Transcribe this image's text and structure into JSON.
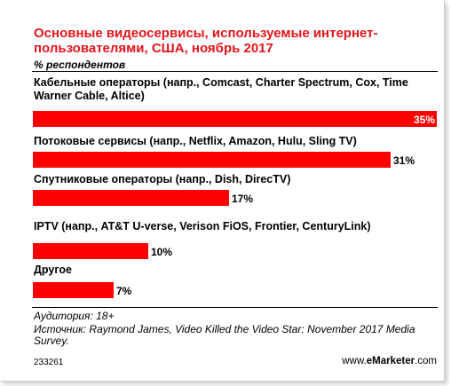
{
  "header": {
    "title": "Основные видеосервисы, используемые интернет-пользователями, США, ноябрь 2017",
    "subtitle": "% респондентов"
  },
  "chart_data": {
    "type": "bar",
    "orientation": "horizontal",
    "categories": [
      "Кабельные операторы (напр., Comcast, Charter Spectrum, Cox, Time Warner Cable, Altice)",
      "Потоковые сервисы (напр., Netflix, Amazon, Hulu, Sling TV)",
      "Спутниковые операторы (напр., Dish, DirecTV)",
      "IPTV (напр., AT&T U-verse, Verison FiOS, Frontier, CenturyLink)",
      "Другое"
    ],
    "values": [
      35,
      31,
      17,
      10,
      7
    ],
    "value_labels": [
      "35%",
      "31%",
      "17%",
      "10%",
      "7%"
    ],
    "xlim": [
      0,
      35
    ],
    "grid": false,
    "bar_color": "#ff0000"
  },
  "footer": {
    "audience": "Аудитория: 18+",
    "source": "Источник: Raymond James, Video Killed the Video Star: November 2017 Media Survey.",
    "chart_id": "233261",
    "brand_prefix": "www.",
    "brand_name": "eMarketer",
    "brand_suffix": ".com"
  }
}
